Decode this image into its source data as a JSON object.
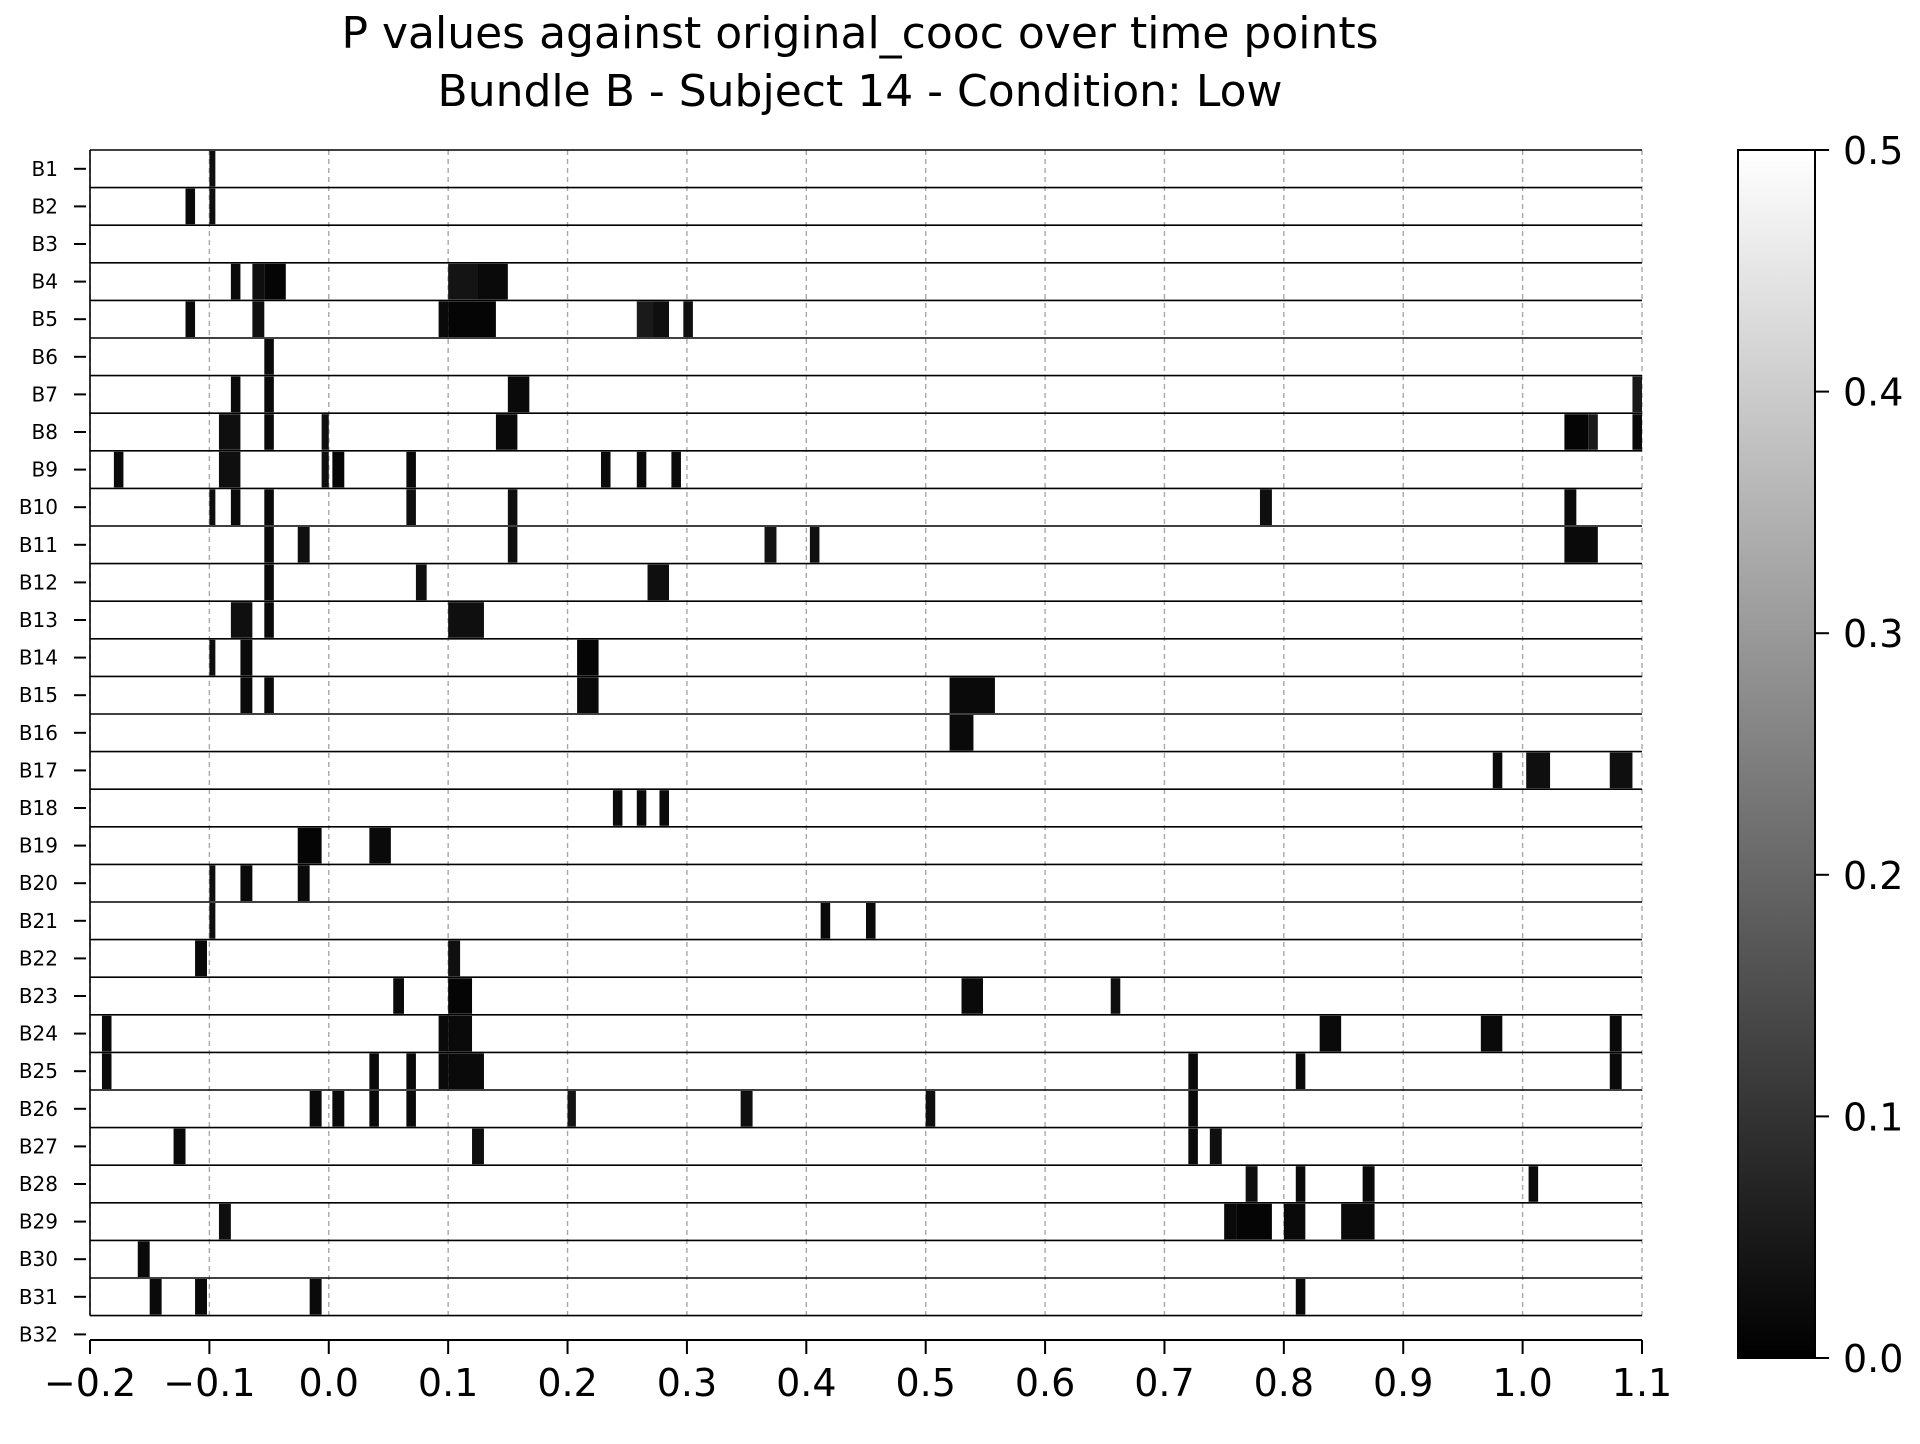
{
  "chart_data": {
    "type": "heatmap",
    "title_line1": "P values against original_cooc over time points",
    "title_line2": "Bundle B - Subject 14 - Condition: Low",
    "xlabel": "",
    "ylabel": "",
    "xlim": [
      -0.2,
      1.1
    ],
    "x_ticks": [
      "−0.2",
      "−0.1",
      "0.0",
      "0.1",
      "0.2",
      "0.3",
      "0.4",
      "0.5",
      "0.6",
      "0.7",
      "0.8",
      "0.9",
      "1.0",
      "1.1"
    ],
    "x_tick_values": [
      -0.2,
      -0.1,
      0.0,
      0.1,
      0.2,
      0.3,
      0.4,
      0.5,
      0.6,
      0.7,
      0.8,
      0.9,
      1.0,
      1.1
    ],
    "grid": "vertical dashed",
    "colormap": "gray",
    "colorbar": {
      "vmin": 0.0,
      "vmax": 0.5,
      "ticks": [
        "0.0",
        "0.1",
        "0.2",
        "0.3",
        "0.4",
        "0.5"
      ],
      "tick_values": [
        0.0,
        0.1,
        0.2,
        0.3,
        0.4,
        0.5
      ]
    },
    "rows": [
      "B1",
      "B2",
      "B3",
      "B4",
      "B5",
      "B6",
      "B7",
      "B8",
      "B9",
      "B10",
      "B11",
      "B12",
      "B13",
      "B14",
      "B15",
      "B16",
      "B17",
      "B18",
      "B19",
      "B20",
      "B21",
      "B22",
      "B23",
      "B24",
      "B25",
      "B26",
      "B27",
      "B28",
      "B29",
      "B30",
      "B31",
      "B32"
    ],
    "low_p_segments": [
      {
        "row": "B1",
        "segments": [
          [
            -0.1,
            -0.095,
            0.03
          ]
        ]
      },
      {
        "row": "B2",
        "segments": [
          [
            -0.12,
            -0.112,
            0.02
          ],
          [
            -0.1,
            -0.095,
            0.03
          ]
        ]
      },
      {
        "row": "B3",
        "segments": []
      },
      {
        "row": "B4",
        "segments": [
          [
            -0.082,
            -0.074,
            0.02
          ],
          [
            -0.064,
            -0.054,
            0.03
          ],
          [
            -0.054,
            -0.036,
            0.01
          ],
          [
            0.1,
            0.125,
            0.04
          ],
          [
            0.125,
            0.15,
            0.02
          ]
        ]
      },
      {
        "row": "B5",
        "segments": [
          [
            -0.12,
            -0.112,
            0.02
          ],
          [
            -0.064,
            -0.054,
            0.03
          ],
          [
            0.092,
            0.1,
            0.02
          ],
          [
            0.1,
            0.14,
            0.01
          ],
          [
            0.258,
            0.272,
            0.05
          ],
          [
            0.272,
            0.285,
            0.03
          ],
          [
            0.297,
            0.305,
            0.03
          ]
        ]
      },
      {
        "row": "B6",
        "segments": [
          [
            -0.054,
            -0.046,
            0.02
          ]
        ]
      },
      {
        "row": "B7",
        "segments": [
          [
            -0.082,
            -0.074,
            0.02
          ],
          [
            -0.054,
            -0.046,
            0.02
          ],
          [
            0.15,
            0.168,
            0.02
          ],
          [
            1.092,
            1.1,
            0.05
          ]
        ]
      },
      {
        "row": "B8",
        "segments": [
          [
            -0.092,
            -0.074,
            0.03
          ],
          [
            -0.054,
            -0.046,
            0.02
          ],
          [
            -0.006,
            0.0,
            0.03
          ],
          [
            0.14,
            0.158,
            0.02
          ],
          [
            1.035,
            1.055,
            0.01
          ],
          [
            1.055,
            1.063,
            0.05
          ],
          [
            1.092,
            1.1,
            0.02
          ]
        ]
      },
      {
        "row": "B9",
        "segments": [
          [
            -0.18,
            -0.172,
            0.02
          ],
          [
            -0.092,
            -0.074,
            0.03
          ],
          [
            -0.006,
            0.0,
            0.03
          ],
          [
            0.003,
            0.013,
            0.01
          ],
          [
            0.065,
            0.073,
            0.02
          ],
          [
            0.228,
            0.236,
            0.02
          ],
          [
            0.258,
            0.266,
            0.02
          ],
          [
            0.287,
            0.295,
            0.02
          ]
        ]
      },
      {
        "row": "B10",
        "segments": [
          [
            -0.1,
            -0.095,
            0.03
          ],
          [
            -0.082,
            -0.074,
            0.02
          ],
          [
            -0.054,
            -0.046,
            0.02
          ],
          [
            0.065,
            0.073,
            0.03
          ],
          [
            0.15,
            0.158,
            0.03
          ],
          [
            0.78,
            0.79,
            0.03
          ],
          [
            1.035,
            1.045,
            0.02
          ]
        ]
      },
      {
        "row": "B11",
        "segments": [
          [
            -0.054,
            -0.046,
            0.02
          ],
          [
            -0.026,
            -0.016,
            0.03
          ],
          [
            0.15,
            0.158,
            0.03
          ],
          [
            0.365,
            0.375,
            0.04
          ],
          [
            0.403,
            0.411,
            0.03
          ],
          [
            1.035,
            1.063,
            0.02
          ]
        ]
      },
      {
        "row": "B12",
        "segments": [
          [
            -0.054,
            -0.046,
            0.02
          ],
          [
            0.073,
            0.082,
            0.03
          ],
          [
            0.267,
            0.285,
            0.03
          ]
        ]
      },
      {
        "row": "B13",
        "segments": [
          [
            -0.082,
            -0.064,
            0.03
          ],
          [
            -0.054,
            -0.046,
            0.02
          ],
          [
            0.1,
            0.13,
            0.03
          ]
        ]
      },
      {
        "row": "B14",
        "segments": [
          [
            -0.1,
            -0.095,
            0.03
          ],
          [
            -0.074,
            -0.064,
            0.02
          ],
          [
            0.208,
            0.226,
            0.01
          ]
        ]
      },
      {
        "row": "B15",
        "segments": [
          [
            -0.074,
            -0.064,
            0.02
          ],
          [
            -0.054,
            -0.046,
            0.02
          ],
          [
            0.208,
            0.226,
            0.02
          ],
          [
            0.52,
            0.558,
            0.02
          ]
        ]
      },
      {
        "row": "B16",
        "segments": [
          [
            0.52,
            0.54,
            0.02
          ]
        ]
      },
      {
        "row": "B17",
        "segments": [
          [
            0.975,
            0.983,
            0.02
          ],
          [
            1.003,
            1.023,
            0.03
          ],
          [
            1.073,
            1.092,
            0.03
          ]
        ]
      },
      {
        "row": "B18",
        "segments": [
          [
            0.238,
            0.246,
            0.02
          ],
          [
            0.258,
            0.266,
            0.02
          ],
          [
            0.277,
            0.285,
            0.02
          ]
        ]
      },
      {
        "row": "B19",
        "segments": [
          [
            -0.026,
            -0.006,
            0.01
          ],
          [
            0.034,
            0.052,
            0.02
          ]
        ]
      },
      {
        "row": "B20",
        "segments": [
          [
            -0.1,
            -0.095,
            0.03
          ],
          [
            -0.074,
            -0.064,
            0.02
          ],
          [
            -0.026,
            -0.016,
            0.02
          ]
        ]
      },
      {
        "row": "B21",
        "segments": [
          [
            -0.1,
            -0.095,
            0.03
          ],
          [
            0.412,
            0.42,
            0.02
          ],
          [
            0.45,
            0.458,
            0.02
          ]
        ]
      },
      {
        "row": "B22",
        "segments": [
          [
            -0.112,
            -0.102,
            0.02
          ],
          [
            0.1,
            0.11,
            0.03
          ]
        ]
      },
      {
        "row": "B23",
        "segments": [
          [
            0.054,
            0.063,
            0.02
          ],
          [
            0.1,
            0.12,
            0.01
          ],
          [
            0.53,
            0.548,
            0.02
          ],
          [
            0.655,
            0.663,
            0.03
          ]
        ]
      },
      {
        "row": "B24",
        "segments": [
          [
            -0.19,
            -0.182,
            0.02
          ],
          [
            0.092,
            0.1,
            0.02
          ],
          [
            0.1,
            0.12,
            0.02
          ],
          [
            0.83,
            0.848,
            0.02
          ],
          [
            0.965,
            0.983,
            0.02
          ],
          [
            1.073,
            1.083,
            0.02
          ]
        ]
      },
      {
        "row": "B25",
        "segments": [
          [
            -0.19,
            -0.182,
            0.02
          ],
          [
            0.034,
            0.042,
            0.02
          ],
          [
            0.065,
            0.073,
            0.02
          ],
          [
            0.092,
            0.1,
            0.02
          ],
          [
            0.1,
            0.13,
            0.02
          ],
          [
            0.72,
            0.728,
            0.02
          ],
          [
            0.81,
            0.818,
            0.02
          ],
          [
            1.073,
            1.083,
            0.02
          ]
        ]
      },
      {
        "row": "B26",
        "segments": [
          [
            -0.016,
            -0.006,
            0.02
          ],
          [
            0.003,
            0.013,
            0.02
          ],
          [
            0.034,
            0.042,
            0.02
          ],
          [
            0.065,
            0.073,
            0.02
          ],
          [
            0.2,
            0.207,
            0.04
          ],
          [
            0.345,
            0.355,
            0.03
          ],
          [
            0.5,
            0.508,
            0.03
          ],
          [
            0.72,
            0.728,
            0.02
          ]
        ]
      },
      {
        "row": "B27",
        "segments": [
          [
            -0.13,
            -0.12,
            0.02
          ],
          [
            0.12,
            0.13,
            0.03
          ],
          [
            0.72,
            0.728,
            0.02
          ],
          [
            0.738,
            0.748,
            0.03
          ]
        ]
      },
      {
        "row": "B28",
        "segments": [
          [
            0.768,
            0.778,
            0.03
          ],
          [
            0.81,
            0.818,
            0.02
          ],
          [
            0.866,
            0.876,
            0.02
          ],
          [
            1.005,
            1.013,
            0.02
          ]
        ]
      },
      {
        "row": "B29",
        "segments": [
          [
            -0.092,
            -0.082,
            0.03
          ],
          [
            0.75,
            0.76,
            0.02
          ],
          [
            0.76,
            0.79,
            0.01
          ],
          [
            0.8,
            0.818,
            0.02
          ],
          [
            0.848,
            0.876,
            0.02
          ]
        ]
      },
      {
        "row": "B30",
        "segments": [
          [
            -0.16,
            -0.15,
            0.02
          ]
        ]
      },
      {
        "row": "B31",
        "segments": [
          [
            -0.15,
            -0.14,
            0.02
          ],
          [
            -0.112,
            -0.102,
            0.02
          ],
          [
            -0.016,
            -0.006,
            0.02
          ],
          [
            0.81,
            0.818,
            0.02
          ]
        ]
      },
      {
        "row": "B32",
        "segments": []
      }
    ]
  }
}
